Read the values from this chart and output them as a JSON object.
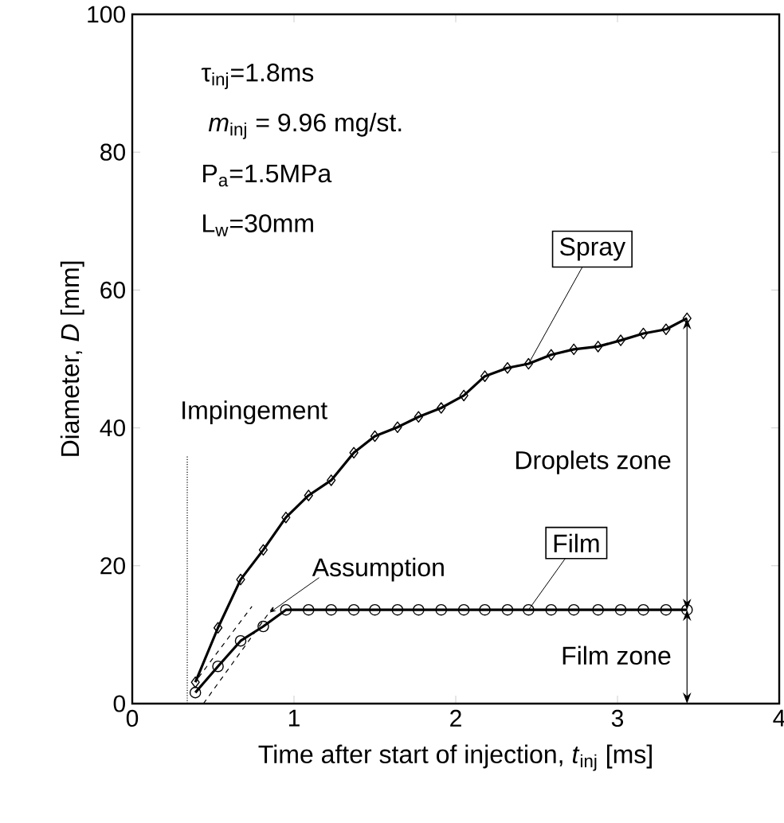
{
  "chart_data": {
    "type": "line",
    "xlabel": "Time after start of injection, *t*$_{inj}$ [ms]",
    "ylabel": "Diameter,  *D*  [mm]",
    "xlim": [
      0,
      4
    ],
    "ylim": [
      0,
      100
    ],
    "xticks": [
      0,
      1,
      2,
      3,
      4
    ],
    "yticks": [
      0,
      20,
      40,
      60,
      80,
      100
    ],
    "grid": false,
    "legend": false,
    "x": [
      0.39,
      0.53,
      0.67,
      0.81,
      0.95,
      1.09,
      1.23,
      1.37,
      1.5,
      1.64,
      1.77,
      1.91,
      2.05,
      2.18,
      2.32,
      2.45,
      2.59,
      2.73,
      2.88,
      3.02,
      3.16,
      3.3,
      3.43
    ],
    "series": [
      {
        "name": "Spray",
        "color": "#000000",
        "marker": "diamond",
        "line_style": "solid",
        "values": [
          3.1,
          11,
          18,
          22.3,
          27,
          30.2,
          32.4,
          36.4,
          38.8,
          40.1,
          41.6,
          42.9,
          44.7,
          47.5,
          48.7,
          49.3,
          50.6,
          51.4,
          51.8,
          52.7,
          53.7,
          54.3,
          55.9
        ]
      },
      {
        "name": "Film",
        "color": "#000000",
        "marker": "circle",
        "line_style": "solid",
        "values": [
          1.6,
          5.4,
          9.1,
          11.2,
          13.6,
          13.6,
          13.6,
          13.6,
          13.6,
          13.6,
          13.6,
          13.6,
          13.6,
          13.6,
          13.6,
          13.6,
          13.6,
          13.6,
          13.6,
          13.6,
          13.6,
          13.6,
          13.6
        ]
      },
      {
        "color": "#000000",
        "marker": "none",
        "line_style": "dashed",
        "x": [
          0.41,
          0.74
        ],
        "values": [
          3.8,
          14.1
        ]
      },
      {
        "color": "#000000",
        "marker": "none",
        "line_style": "dashed",
        "x": [
          0.44,
          0.88
        ],
        "values": [
          0,
          14.3
        ]
      },
      {
        "color": "#000000",
        "marker": "none",
        "line_style": "dotted",
        "x": [
          0.34,
          0.34
        ],
        "values": [
          0,
          36
        ]
      }
    ],
    "annotations": [
      "τ$_{inj}$=1.8ms",
      " *m*$_{inj}$ = 9.96 mg/st.",
      "P$_{a}$=1.5MPa",
      "L$_{w}$=30mm",
      {
        "text": "Impingement",
        "x": 0.34,
        "y": 36
      },
      {
        "text": "Assumption",
        "x": 0.85,
        "y": 13.2
      },
      "Droplets zone",
      "Film zone"
    ]
  }
}
